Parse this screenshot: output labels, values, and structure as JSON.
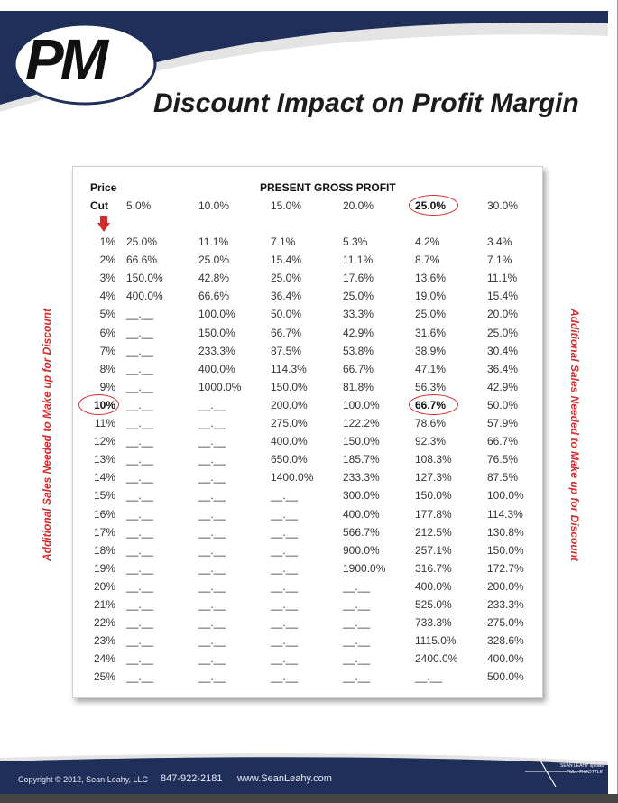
{
  "logo_text": "PM",
  "title": "Discount Impact on Profit Margin",
  "side_label_left": "Additional Sales Needed to Make up for Discount",
  "side_label_right": "Additional Sales Needed to Make up for Discount",
  "table": {
    "header_price": "Price",
    "header_cut": "Cut",
    "header_group": "PRESENT GROSS PROFIT",
    "columns": [
      "5.0%",
      "10.0%",
      "15.0%",
      "20.0%",
      "25.0%",
      "30.0%"
    ],
    "rows": [
      {
        "cut": "1%",
        "values": [
          "25.0%",
          "11.1%",
          "7.1%",
          "5.3%",
          "4.2%",
          "3.4%"
        ]
      },
      {
        "cut": "2%",
        "values": [
          "66.6%",
          "25.0%",
          "15.4%",
          "11.1%",
          "8.7%",
          "7.1%"
        ]
      },
      {
        "cut": "3%",
        "values": [
          "150.0%",
          "42.8%",
          "25.0%",
          "17.6%",
          "13.6%",
          "11.1%"
        ]
      },
      {
        "cut": "4%",
        "values": [
          "400.0%",
          "66.6%",
          "36.4%",
          "25.0%",
          "19.0%",
          "15.4%"
        ]
      },
      {
        "cut": "5%",
        "values": [
          "__.__",
          "100.0%",
          "50.0%",
          "33.3%",
          "25.0%",
          "20.0%"
        ]
      },
      {
        "cut": "6%",
        "values": [
          "__.__",
          "150.0%",
          "66.7%",
          "42.9%",
          "31.6%",
          "25.0%"
        ]
      },
      {
        "cut": "7%",
        "values": [
          "__.__",
          "233.3%",
          "87.5%",
          "53.8%",
          "38.9%",
          "30.4%"
        ]
      },
      {
        "cut": "8%",
        "values": [
          "__.__",
          "400.0%",
          "114.3%",
          "66.7%",
          "47.1%",
          "36.4%"
        ]
      },
      {
        "cut": "9%",
        "values": [
          "__.__",
          "1000.0%",
          "150.0%",
          "81.8%",
          "56.3%",
          "42.9%"
        ]
      },
      {
        "cut": "10%",
        "values": [
          "__.__",
          "__.__",
          "200.0%",
          "100.0%",
          "66.7%",
          "50.0%"
        ]
      },
      {
        "cut": "11%",
        "values": [
          "__.__",
          "__.__",
          "275.0%",
          "122.2%",
          "78.6%",
          "57.9%"
        ]
      },
      {
        "cut": "12%",
        "values": [
          "__.__",
          "__.__",
          "400.0%",
          "150.0%",
          "92.3%",
          "66.7%"
        ]
      },
      {
        "cut": "13%",
        "values": [
          "__.__",
          "__.__",
          "650.0%",
          "185.7%",
          "108.3%",
          "76.5%"
        ]
      },
      {
        "cut": "14%",
        "values": [
          "__.__",
          "__.__",
          "1400.0%",
          "233.3%",
          "127.3%",
          "87.5%"
        ]
      },
      {
        "cut": "15%",
        "values": [
          "__.__",
          "__.__",
          "__.__",
          "300.0%",
          "150.0%",
          "100.0%"
        ]
      },
      {
        "cut": "16%",
        "values": [
          "__.__",
          "__.__",
          "__.__",
          "400.0%",
          "177.8%",
          "114.3%"
        ]
      },
      {
        "cut": "17%",
        "values": [
          "__.__",
          "__.__",
          "__.__",
          "566.7%",
          "212.5%",
          "130.8%"
        ]
      },
      {
        "cut": "18%",
        "values": [
          "__.__",
          "__.__",
          "__.__",
          "900.0%",
          "257.1%",
          "150.0%"
        ]
      },
      {
        "cut": "19%",
        "values": [
          "__.__",
          "__.__",
          "__.__",
          "1900.0%",
          "316.7%",
          "172.7%"
        ]
      },
      {
        "cut": "20%",
        "values": [
          "__.__",
          "__.__",
          "__.__",
          "__.__",
          "400.0%",
          "200.0%"
        ]
      },
      {
        "cut": "21%",
        "values": [
          "__.__",
          "__.__",
          "__.__",
          "__.__",
          "525.0%",
          "233.3%"
        ]
      },
      {
        "cut": "22%",
        "values": [
          "__.__",
          "__.__",
          "__.__",
          "__.__",
          "733.3%",
          "275.0%"
        ]
      },
      {
        "cut": "23%",
        "values": [
          "__.__",
          "__.__",
          "__.__",
          "__.__",
          "1115.0%",
          "328.6%"
        ]
      },
      {
        "cut": "24%",
        "values": [
          "__.__",
          "__.__",
          "__.__",
          "__.__",
          "2400.0%",
          "400.0%"
        ]
      },
      {
        "cut": "25%",
        "values": [
          "__.__",
          "__.__",
          "__.__",
          "__.__",
          "__.__",
          "500.0%"
        ]
      }
    ],
    "highlighted_column": "25.0%",
    "highlighted_row": "10%",
    "highlighted_cell": "66.7%"
  },
  "footer": {
    "copyright": "Copyright © 2012, Sean Leahy, LLC",
    "phone": "847-922-2181",
    "website": "www.SeanLeahy.com",
    "logo_line1": "SEAN LEAHY speaks",
    "logo_line2": "FULL THROTTLE"
  },
  "colors": {
    "navy": "#1f2f5a",
    "accent_red": "#d42b2b",
    "light_gray": "#e4e4e4"
  }
}
